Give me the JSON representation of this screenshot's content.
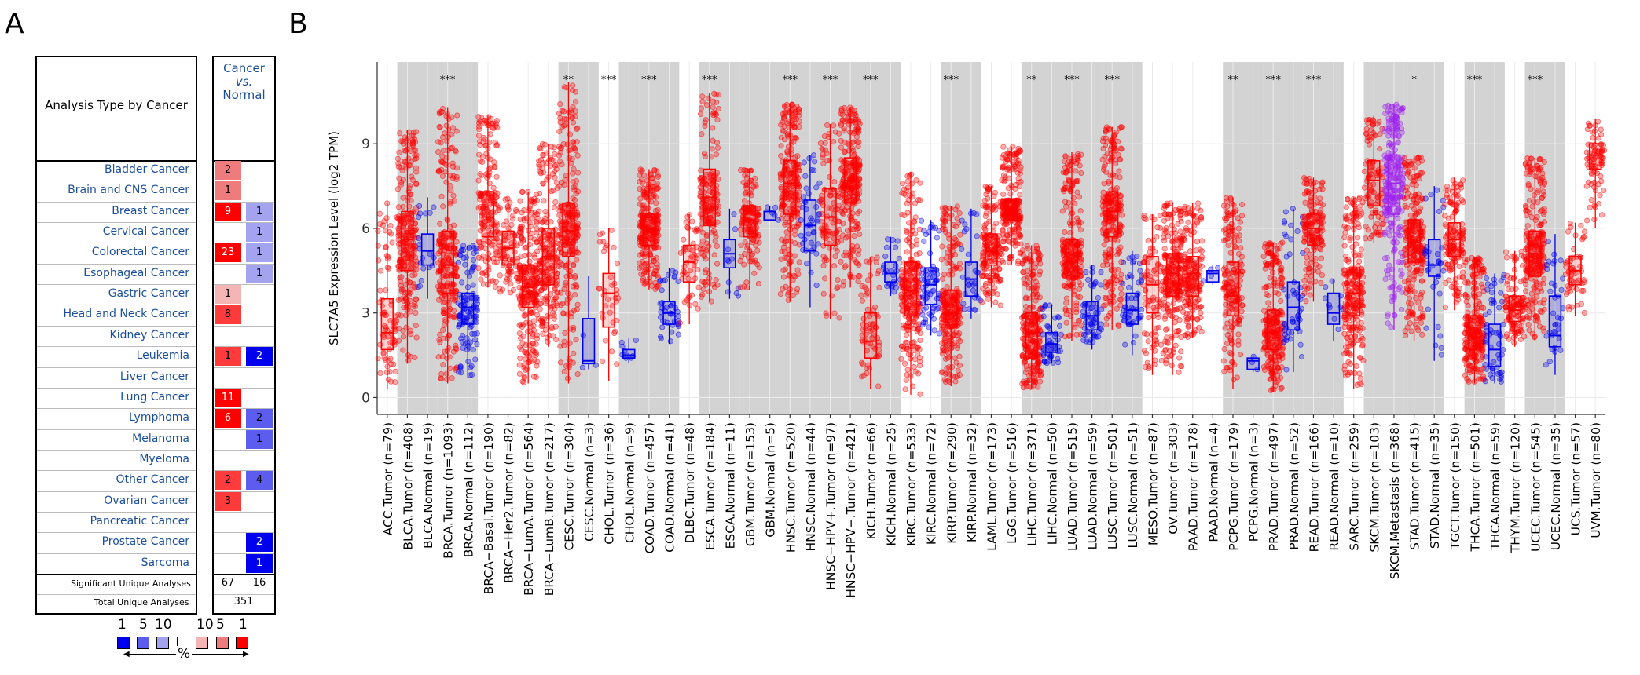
{
  "panel_a": {
    "letter": "A",
    "header_label": "Analysis Type by Cancer",
    "col_header": [
      "Cancer",
      "vs.",
      "Normal"
    ],
    "rows": [
      {
        "name": "Bladder Cancer",
        "up": "2",
        "down": ""
      },
      {
        "name": "Brain and CNS Cancer",
        "up": "1",
        "down": ""
      },
      {
        "name": "Breast Cancer",
        "up": "9",
        "down": "1"
      },
      {
        "name": "Cervical Cancer",
        "up": "",
        "down": "1"
      },
      {
        "name": "Colorectal Cancer",
        "up": "23",
        "down": "1"
      },
      {
        "name": "Esophageal Cancer",
        "up": "",
        "down": "1"
      },
      {
        "name": "Gastric Cancer",
        "up": "1",
        "down": ""
      },
      {
        "name": "Head and Neck Cancer",
        "up": "8",
        "down": ""
      },
      {
        "name": "Kidney Cancer",
        "up": "",
        "down": ""
      },
      {
        "name": "Leukemia",
        "up": "1",
        "down": "2"
      },
      {
        "name": "Liver Cancer",
        "up": "",
        "down": ""
      },
      {
        "name": "Lung Cancer",
        "up": "11",
        "down": ""
      },
      {
        "name": "Lymphoma",
        "up": "6",
        "down": "2"
      },
      {
        "name": "Melanoma",
        "up": "",
        "down": "1"
      },
      {
        "name": "Myeloma",
        "up": "",
        "down": ""
      },
      {
        "name": "Other Cancer",
        "up": "2",
        "down": "4"
      },
      {
        "name": "Ovarian Cancer",
        "up": "3",
        "down": ""
      },
      {
        "name": "Pancreatic Cancer",
        "up": "",
        "down": ""
      },
      {
        "name": "Prostate Cancer",
        "up": "",
        "down": "2"
      },
      {
        "name": "Sarcoma",
        "up": "",
        "down": "1"
      }
    ],
    "cell_colors": {
      "up": [
        "#ef7c7c",
        "#ef7c7c",
        "#ff0000",
        null,
        "#ff0000",
        null,
        "#f6b5b5",
        "#ff3b3b",
        null,
        "#ff3b3b",
        null,
        "#ff0000",
        "#ff0000",
        null,
        null,
        "#ff3b3b",
        "#ff3b3b",
        null,
        null,
        null
      ],
      "down": [
        null,
        null,
        "#a3a3f0",
        "#a3a3f0",
        "#a3a3f0",
        "#a3a3f0",
        null,
        null,
        null,
        "#0000ee",
        null,
        null,
        "#5c5cee",
        "#5c5cee",
        null,
        "#5c5cee",
        null,
        null,
        "#0000ee",
        "#0000ee"
      ]
    },
    "significant_label": "Significant Unique Analyses",
    "significant_up": "67",
    "significant_down": "16",
    "total_label": "Total Unique Analyses",
    "total": "351",
    "legend_labels": [
      "1",
      "5",
      "10",
      "10",
      "5",
      "1"
    ],
    "legend_colors": [
      "#0000ee",
      "#5c5cee",
      "#a3a3f0",
      "#ffffff",
      "#f6b5b5",
      "#ef7c7c",
      "#ff0000"
    ],
    "legend_unit": "%"
  },
  "panel_b": {
    "letter": "B"
  },
  "chart_data": {
    "type": "box",
    "ylabel": "SLC7A5 Expression Level (log2 TPM)",
    "yticks": [
      0,
      3,
      6,
      9
    ],
    "ylim": [
      -0.6,
      11.9
    ],
    "grid": true,
    "tumor_color": "#ff0000",
    "normal_color": "#0000ee",
    "metastasis_color": "#a020f0",
    "categories": [
      "ACC.Tumor (n=79)",
      "BLCA.Tumor (n=408)",
      "BLCA.Normal (n=19)",
      "BRCA.Tumor (n=1093)",
      "BRCA.Normal (n=112)",
      "BRCA−Basal.Tumor (n=190)",
      "BRCA−Her2.Tumor (n=82)",
      "BRCA−LumA.Tumor (n=564)",
      "BRCA−LumB.Tumor (n=217)",
      "CESC.Tumor (n=304)",
      "CESC.Normal (n=3)",
      "CHOL.Tumor (n=36)",
      "CHOL.Normal (n=9)",
      "COAD.Tumor (n=457)",
      "COAD.Normal (n=41)",
      "DLBC.Tumor (n=48)",
      "ESCA.Tumor (n=184)",
      "ESCA.Normal (n=11)",
      "GBM.Tumor (n=153)",
      "GBM.Normal (n=5)",
      "HNSC.Tumor (n=520)",
      "HNSC.Normal (n=44)",
      "HNSC−HPV+.Tumor (n=97)",
      "HNSC−HPV−.Tumor (n=421)",
      "KICH.Tumor (n=66)",
      "KICH.Normal (n=25)",
      "KIRC.Tumor (n=533)",
      "KIRC.Normal (n=72)",
      "KIRP.Tumor (n=290)",
      "KIRP.Normal (n=32)",
      "LAML.Tumor (n=173)",
      "LGG.Tumor (n=516)",
      "LIHC.Tumor (n=371)",
      "LIHC.Normal (n=50)",
      "LUAD.Tumor (n=515)",
      "LUAD.Normal (n=59)",
      "LUSC.Tumor (n=501)",
      "LUSC.Normal (n=51)",
      "MESO.Tumor (n=87)",
      "OV.Tumor (n=303)",
      "PAAD.Tumor (n=178)",
      "PAAD.Normal (n=4)",
      "PCPG.Tumor (n=179)",
      "PCPG.Normal (n=3)",
      "PRAD.Tumor (n=497)",
      "PRAD.Normal (n=52)",
      "READ.Tumor (n=166)",
      "READ.Normal (n=10)",
      "SARC.Tumor (n=259)",
      "SKCM.Tumor (n=103)",
      "SKCM.Metastasis (n=368)",
      "STAD.Tumor (n=415)",
      "STAD.Normal (n=35)",
      "TGCT.Tumor (n=150)",
      "THCA.Tumor (n=501)",
      "THCA.Normal (n=59)",
      "THYM.Tumor (n=120)",
      "UCEC.Tumor (n=545)",
      "UCEC.Normal (n=35)",
      "UCS.Tumor (n=57)",
      "UVM.Tumor (n=80)"
    ],
    "group": [
      "T",
      "T",
      "N",
      "T",
      "N",
      "T",
      "T",
      "T",
      "T",
      "T",
      "N",
      "T",
      "N",
      "T",
      "N",
      "T",
      "T",
      "N",
      "T",
      "N",
      "T",
      "N",
      "T",
      "T",
      "T",
      "N",
      "T",
      "N",
      "T",
      "N",
      "T",
      "T",
      "T",
      "N",
      "T",
      "N",
      "T",
      "N",
      "T",
      "T",
      "T",
      "N",
      "T",
      "N",
      "T",
      "N",
      "T",
      "N",
      "T",
      "T",
      "M",
      "T",
      "N",
      "T",
      "T",
      "N",
      "T",
      "T",
      "N",
      "T",
      "T"
    ],
    "boxes": [
      {
        "lo": 0.3,
        "q1": 1.7,
        "med": 2.3,
        "q3": 3.5,
        "hi": 6.9
      },
      {
        "lo": 1.2,
        "q1": 4.5,
        "med": 5.6,
        "q3": 6.6,
        "hi": 9.5
      },
      {
        "lo": 3.5,
        "q1": 4.7,
        "med": 5.2,
        "q3": 5.8,
        "hi": 7.1
      },
      {
        "lo": 0.5,
        "q1": 3.7,
        "med": 4.7,
        "q3": 5.9,
        "hi": 10.3
      },
      {
        "lo": 0.7,
        "q1": 2.6,
        "med": 3.2,
        "q3": 3.7,
        "hi": 5.4
      },
      {
        "lo": 3.9,
        "q1": 5.7,
        "med": 6.4,
        "q3": 7.3,
        "hi": 10.0
      },
      {
        "lo": 3.7,
        "q1": 4.7,
        "med": 5.3,
        "q3": 5.9,
        "hi": 7.1
      },
      {
        "lo": 0.5,
        "q1": 3.2,
        "med": 3.9,
        "q3": 4.7,
        "hi": 7.3
      },
      {
        "lo": 1.8,
        "q1": 4.0,
        "med": 5.0,
        "q3": 6.0,
        "hi": 9.0
      },
      {
        "lo": 0.5,
        "q1": 5.0,
        "med": 5.9,
        "q3": 6.9,
        "hi": 11.2
      },
      {
        "lo": 1.0,
        "q1": 1.2,
        "med": 1.3,
        "q3": 2.8,
        "hi": 4.3
      },
      {
        "lo": 0.6,
        "q1": 2.5,
        "med": 3.7,
        "q3": 4.4,
        "hi": 6.0
      },
      {
        "lo": 1.2,
        "q1": 1.4,
        "med": 1.5,
        "q3": 1.7,
        "hi": 2.1
      },
      {
        "lo": 3.8,
        "q1": 5.4,
        "med": 5.9,
        "q3": 6.5,
        "hi": 8.1
      },
      {
        "lo": 1.9,
        "q1": 2.6,
        "med": 3.0,
        "q3": 3.4,
        "hi": 4.6
      },
      {
        "lo": 2.6,
        "q1": 4.1,
        "med": 4.8,
        "q3": 5.4,
        "hi": 6.5
      },
      {
        "lo": 3.4,
        "q1": 6.1,
        "med": 7.1,
        "q3": 8.1,
        "hi": 10.8
      },
      {
        "lo": 3.5,
        "q1": 4.6,
        "med": 5.1,
        "q3": 5.6,
        "hi": 6.7
      },
      {
        "lo": 3.8,
        "q1": 5.7,
        "med": 6.3,
        "q3": 6.8,
        "hi": 8.1
      },
      {
        "lo": 6.3,
        "q1": 6.3,
        "med": 6.6,
        "q3": 6.6,
        "hi": 6.8
      },
      {
        "lo": 3.4,
        "q1": 6.5,
        "med": 7.6,
        "q3": 8.4,
        "hi": 10.4
      },
      {
        "lo": 3.2,
        "q1": 5.2,
        "med": 6.1,
        "q3": 7.0,
        "hi": 8.6
      },
      {
        "lo": 2.8,
        "q1": 5.4,
        "med": 6.4,
        "q3": 7.4,
        "hi": 9.7
      },
      {
        "lo": 3.9,
        "q1": 6.9,
        "med": 7.7,
        "q3": 8.5,
        "hi": 10.3
      },
      {
        "lo": 0.3,
        "q1": 1.4,
        "med": 2.0,
        "q3": 3.0,
        "hi": 5.0
      },
      {
        "lo": 3.6,
        "q1": 4.1,
        "med": 4.4,
        "q3": 4.8,
        "hi": 5.7
      },
      {
        "lo": 0.1,
        "q1": 2.9,
        "med": 3.8,
        "q3": 4.8,
        "hi": 8.0
      },
      {
        "lo": 2.2,
        "q1": 3.3,
        "med": 4.0,
        "q3": 4.6,
        "hi": 6.3
      },
      {
        "lo": 0.4,
        "q1": 2.5,
        "med": 3.0,
        "q3": 3.8,
        "hi": 6.8
      },
      {
        "lo": 2.8,
        "q1": 3.6,
        "med": 4.2,
        "q3": 4.8,
        "hi": 6.7
      },
      {
        "lo": 3.2,
        "q1": 4.7,
        "med": 5.2,
        "q3": 5.8,
        "hi": 7.5
      },
      {
        "lo": 4.7,
        "q1": 6.3,
        "med": 6.6,
        "q3": 7.0,
        "hi": 8.9
      },
      {
        "lo": 0.3,
        "q1": 1.4,
        "med": 2.3,
        "q3": 3.0,
        "hi": 5.4
      },
      {
        "lo": 1.2,
        "q1": 1.6,
        "med": 1.9,
        "q3": 2.3,
        "hi": 3.3
      },
      {
        "lo": 2.0,
        "q1": 4.2,
        "med": 4.8,
        "q3": 5.6,
        "hi": 8.7
      },
      {
        "lo": 1.7,
        "q1": 2.4,
        "med": 2.9,
        "q3": 3.4,
        "hi": 4.7
      },
      {
        "lo": 2.4,
        "q1": 5.7,
        "med": 6.6,
        "q3": 7.3,
        "hi": 9.6
      },
      {
        "lo": 1.5,
        "q1": 2.6,
        "med": 3.1,
        "q3": 3.7,
        "hi": 5.2
      },
      {
        "lo": 0.8,
        "q1": 3.0,
        "med": 4.0,
        "q3": 5.0,
        "hi": 6.5
      },
      {
        "lo": 0.8,
        "q1": 3.6,
        "med": 4.4,
        "q3": 5.1,
        "hi": 6.9
      },
      {
        "lo": 2.1,
        "q1": 3.6,
        "med": 4.4,
        "q3": 5.0,
        "hi": 6.9
      },
      {
        "lo": 4.0,
        "q1": 4.1,
        "med": 4.4,
        "q3": 4.5,
        "hi": 4.7
      },
      {
        "lo": 0.3,
        "q1": 2.9,
        "med": 3.6,
        "q3": 4.8,
        "hi": 7.1
      },
      {
        "lo": 0.9,
        "q1": 1.0,
        "med": 1.3,
        "q3": 1.4,
        "hi": 1.5
      },
      {
        "lo": 0.2,
        "q1": 1.7,
        "med": 2.3,
        "q3": 3.1,
        "hi": 5.5
      },
      {
        "lo": 0.9,
        "q1": 2.4,
        "med": 3.2,
        "q3": 4.1,
        "hi": 6.7
      },
      {
        "lo": 3.4,
        "q1": 5.4,
        "med": 6.0,
        "q3": 6.5,
        "hi": 7.8
      },
      {
        "lo": 2.0,
        "q1": 2.6,
        "med": 3.0,
        "q3": 3.7,
        "hi": 4.2
      },
      {
        "lo": 0.3,
        "q1": 2.9,
        "med": 3.7,
        "q3": 4.6,
        "hi": 7.1
      },
      {
        "lo": 5.5,
        "q1": 6.8,
        "med": 7.7,
        "q3": 8.4,
        "hi": 10.0
      },
      {
        "lo": 2.4,
        "q1": 6.5,
        "med": 7.6,
        "q3": 8.6,
        "hi": 10.4
      },
      {
        "lo": 2.0,
        "q1": 4.8,
        "med": 5.5,
        "q3": 6.3,
        "hi": 8.6
      },
      {
        "lo": 1.3,
        "q1": 4.3,
        "med": 4.7,
        "q3": 5.6,
        "hi": 7.5
      },
      {
        "lo": 3.1,
        "q1": 5.0,
        "med": 5.6,
        "q3": 6.2,
        "hi": 7.8
      },
      {
        "lo": 0.5,
        "q1": 1.7,
        "med": 2.3,
        "q3": 2.9,
        "hi": 5.0
      },
      {
        "lo": 0.5,
        "q1": 1.1,
        "med": 1.7,
        "q3": 2.6,
        "hi": 4.4
      },
      {
        "lo": 1.8,
        "q1": 2.7,
        "med": 3.1,
        "q3": 3.6,
        "hi": 5.2
      },
      {
        "lo": 2.0,
        "q1": 4.3,
        "med": 5.1,
        "q3": 5.9,
        "hi": 8.5
      },
      {
        "lo": 0.8,
        "q1": 1.8,
        "med": 2.2,
        "q3": 3.6,
        "hi": 5.8
      },
      {
        "lo": 2.9,
        "q1": 4.0,
        "med": 4.5,
        "q3": 5.0,
        "hi": 6.2
      },
      {
        "lo": 6.0,
        "q1": 8.1,
        "med": 8.6,
        "q3": 9.0,
        "hi": 9.9
      }
    ],
    "shaded_pairs": [
      [
        2,
        4
      ],
      [
        10,
        10
      ],
      [
        12,
        14
      ],
      [
        17,
        17
      ],
      [
        19,
        19
      ],
      [
        21,
        21
      ],
      [
        25,
        25
      ],
      [
        27,
        27
      ],
      [
        29,
        29
      ],
      [
        33,
        33
      ],
      [
        35,
        35
      ],
      [
        37,
        37
      ],
      [
        41,
        41
      ],
      [
        43,
        43
      ],
      [
        45,
        45
      ],
      [
        47,
        47
      ],
      [
        50,
        50
      ],
      [
        52,
        52
      ],
      [
        55,
        55
      ],
      [
        58,
        58
      ]
    ],
    "annotations": [
      {
        "col": 3,
        "text": "***"
      },
      {
        "col": 9,
        "text": "**"
      },
      {
        "col": 11,
        "text": "***"
      },
      {
        "col": 13,
        "text": "***"
      },
      {
        "col": 16,
        "text": "***"
      },
      {
        "col": 20,
        "text": "***"
      },
      {
        "col": 22,
        "text": "***"
      },
      {
        "col": 24,
        "text": "***"
      },
      {
        "col": 28,
        "text": "***"
      },
      {
        "col": 32,
        "text": "**"
      },
      {
        "col": 34,
        "text": "***"
      },
      {
        "col": 36,
        "text": "***"
      },
      {
        "col": 42,
        "text": "**"
      },
      {
        "col": 44,
        "text": "***"
      },
      {
        "col": 46,
        "text": "***"
      },
      {
        "col": 51,
        "text": "*"
      },
      {
        "col": 54,
        "text": "***"
      },
      {
        "col": 57,
        "text": "***"
      }
    ]
  }
}
